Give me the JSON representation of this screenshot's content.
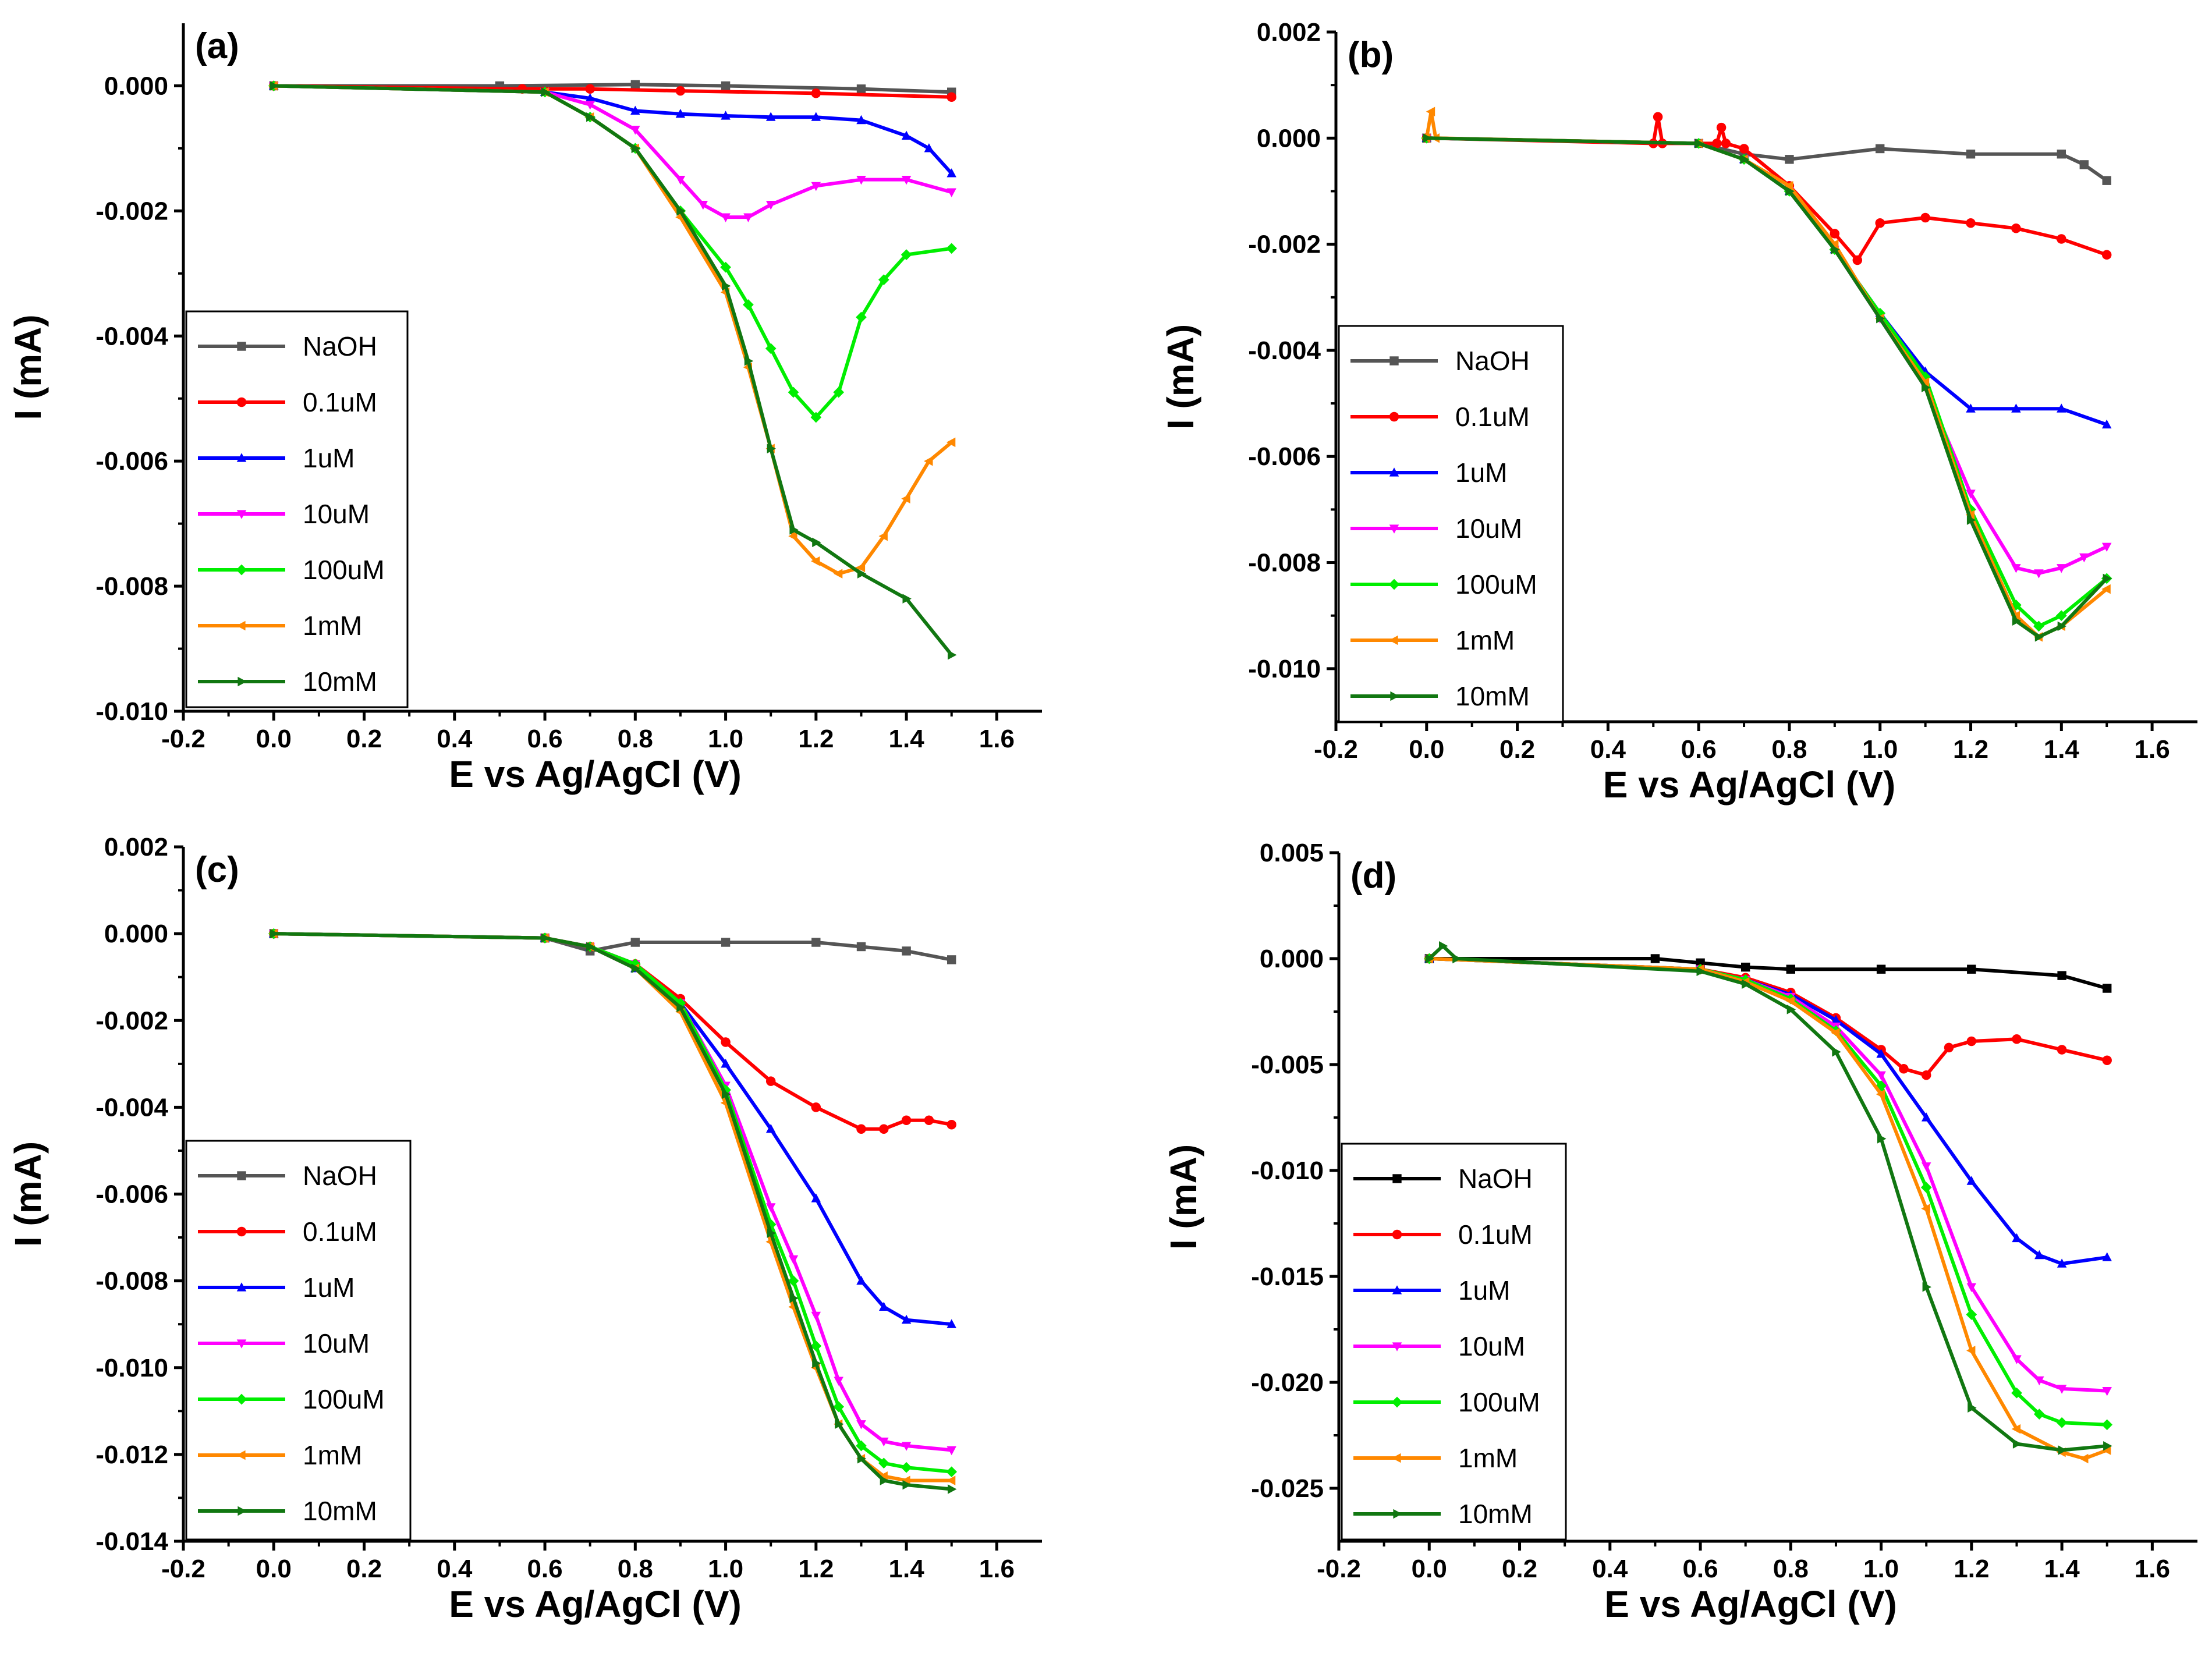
{
  "figure": {
    "legend_labels": [
      "NaOH",
      "0.1uM",
      "1uM",
      "10uM",
      "100uM",
      "1mM",
      "10mM"
    ],
    "series_colors": [
      "#555555",
      "#ff0000",
      "#0000ff",
      "#ff00ff",
      "#00ee00",
      "#ff8800",
      "#117711"
    ],
    "naoh_color_panel_d": "#000000"
  },
  "chart_data": [
    {
      "type": "line",
      "panel": "(a)",
      "xlabel": "E vs Ag/AgCl (V)",
      "ylabel": "I (mA)",
      "xlim": [
        -0.2,
        1.7
      ],
      "ylim": [
        -0.01,
        0.001
      ],
      "xticks": [
        -0.2,
        0.0,
        0.2,
        0.4,
        0.6,
        0.8,
        1.0,
        1.2,
        1.4,
        1.6
      ],
      "xtick_labels": [
        "-0.2",
        "0.0",
        "0.2",
        "0.4",
        "0.6",
        "0.8",
        "1.0",
        "1.2",
        "1.4",
        "1.6"
      ],
      "yticks": [
        0.0,
        -0.002,
        -0.004,
        -0.006,
        -0.008,
        -0.01
      ],
      "ytick_labels": [
        "0.000",
        "-0.002",
        "-0.004",
        "-0.006",
        "-0.008",
        "-0.010"
      ],
      "legend": "left",
      "series": [
        {
          "name": "NaOH",
          "x": [
            0.0,
            0.5,
            0.8,
            1.0,
            1.3,
            1.5
          ],
          "y": [
            0.0,
            0.0,
            2e-05,
            0.0,
            -5e-05,
            -0.0001
          ]
        },
        {
          "name": "0.1uM",
          "x": [
            0.0,
            0.55,
            0.7,
            0.9,
            1.2,
            1.5
          ],
          "y": [
            0.0,
            -5e-05,
            -5e-05,
            -8e-05,
            -0.00012,
            -0.00018
          ]
        },
        {
          "name": "1uM",
          "x": [
            0.0,
            0.6,
            0.7,
            0.8,
            0.9,
            1.0,
            1.1,
            1.2,
            1.3,
            1.4,
            1.45,
            1.5
          ],
          "y": [
            0.0,
            -0.0001,
            -0.0002,
            -0.0004,
            -0.00045,
            -0.00048,
            -0.0005,
            -0.0005,
            -0.00055,
            -0.0008,
            -0.001,
            -0.0014
          ]
        },
        {
          "name": "10uM",
          "x": [
            0.0,
            0.6,
            0.7,
            0.8,
            0.9,
            0.95,
            1.0,
            1.05,
            1.1,
            1.2,
            1.3,
            1.4,
            1.5
          ],
          "y": [
            0.0,
            -0.0001,
            -0.0003,
            -0.0007,
            -0.0015,
            -0.0019,
            -0.0021,
            -0.0021,
            -0.0019,
            -0.0016,
            -0.0015,
            -0.0015,
            -0.0017
          ]
        },
        {
          "name": "100uM",
          "x": [
            0.0,
            0.6,
            0.7,
            0.8,
            0.9,
            1.0,
            1.05,
            1.1,
            1.15,
            1.2,
            1.25,
            1.3,
            1.35,
            1.4,
            1.5
          ],
          "y": [
            0.0,
            -0.0001,
            -0.0005,
            -0.001,
            -0.002,
            -0.0029,
            -0.0035,
            -0.0042,
            -0.0049,
            -0.0053,
            -0.0049,
            -0.0037,
            -0.0031,
            -0.0027,
            -0.0026
          ]
        },
        {
          "name": "1mM",
          "x": [
            0.0,
            0.6,
            0.7,
            0.8,
            0.9,
            1.0,
            1.05,
            1.1,
            1.15,
            1.2,
            1.25,
            1.3,
            1.35,
            1.4,
            1.45,
            1.5
          ],
          "y": [
            0.0,
            -0.0001,
            -0.0005,
            -0.001,
            -0.0021,
            -0.0033,
            -0.0045,
            -0.0058,
            -0.0072,
            -0.0076,
            -0.0078,
            -0.0077,
            -0.0072,
            -0.0066,
            -0.006,
            -0.0057
          ]
        },
        {
          "name": "10mM",
          "x": [
            0.0,
            0.6,
            0.7,
            0.8,
            0.9,
            1.0,
            1.05,
            1.1,
            1.15,
            1.2,
            1.3,
            1.4,
            1.5
          ],
          "y": [
            0.0,
            -0.0001,
            -0.0005,
            -0.001,
            -0.002,
            -0.0032,
            -0.0044,
            -0.0058,
            -0.0071,
            -0.0073,
            -0.0078,
            -0.0082,
            -0.0091
          ]
        }
      ]
    },
    {
      "type": "line",
      "panel": "(b)",
      "xlabel": "E vs Ag/AgCl (V)",
      "ylabel": "I (mA)",
      "xlim": [
        -0.2,
        1.7
      ],
      "ylim": [
        -0.011,
        0.002
      ],
      "xticks": [
        -0.2,
        0.0,
        0.2,
        0.4,
        0.6,
        0.8,
        1.0,
        1.2,
        1.4,
        1.6
      ],
      "xtick_labels": [
        "-0.2",
        "0.0",
        "0.2",
        "0.4",
        "0.6",
        "0.8",
        "1.0",
        "1.2",
        "1.4",
        "1.6"
      ],
      "yticks": [
        0.002,
        0.0,
        -0.002,
        -0.004,
        -0.006,
        -0.008,
        -0.01
      ],
      "ytick_labels": [
        "0.002",
        "0.000",
        "-0.002",
        "-0.004",
        "-0.006",
        "-0.008",
        "-0.010"
      ],
      "legend": "left",
      "series": [
        {
          "name": "NaOH",
          "x": [
            0.0,
            0.6,
            0.7,
            0.8,
            1.0,
            1.2,
            1.4,
            1.45,
            1.5
          ],
          "y": [
            0.0,
            -0.0001,
            -0.0003,
            -0.0004,
            -0.0002,
            -0.0003,
            -0.0003,
            -0.0005,
            -0.0008
          ]
        },
        {
          "name": "0.1uM",
          "x": [
            0.0,
            0.5,
            0.51,
            0.52,
            0.64,
            0.65,
            0.66,
            0.7,
            0.8,
            0.9,
            0.95,
            1.0,
            1.1,
            1.2,
            1.3,
            1.4,
            1.5
          ],
          "y": [
            0.0,
            -0.0001,
            0.0004,
            -0.0001,
            -0.0001,
            0.0002,
            -0.0001,
            -0.0002,
            -0.0009,
            -0.0018,
            -0.0023,
            -0.0016,
            -0.0015,
            -0.0016,
            -0.0017,
            -0.0019,
            -0.0022
          ]
        },
        {
          "name": "1uM",
          "x": [
            0.0,
            0.6,
            0.7,
            0.8,
            0.9,
            1.0,
            1.1,
            1.2,
            1.3,
            1.4,
            1.5
          ],
          "y": [
            0.0,
            -0.0001,
            -0.0004,
            -0.001,
            -0.0021,
            -0.0033,
            -0.0044,
            -0.0051,
            -0.0051,
            -0.0051,
            -0.0054
          ]
        },
        {
          "name": "10uM",
          "x": [
            0.0,
            0.6,
            0.7,
            0.8,
            0.9,
            1.0,
            1.1,
            1.2,
            1.3,
            1.35,
            1.4,
            1.45,
            1.5
          ],
          "y": [
            0.0,
            -0.0001,
            -0.0004,
            -0.001,
            -0.0021,
            -0.0034,
            -0.0047,
            -0.0067,
            -0.0081,
            -0.0082,
            -0.0081,
            -0.0079,
            -0.0077
          ]
        },
        {
          "name": "100uM",
          "x": [
            0.0,
            0.6,
            0.7,
            0.8,
            0.9,
            1.0,
            1.1,
            1.2,
            1.3,
            1.35,
            1.4,
            1.5
          ],
          "y": [
            0.0,
            -0.0001,
            -0.0004,
            -0.001,
            -0.0021,
            -0.0033,
            -0.0045,
            -0.007,
            -0.0088,
            -0.0092,
            -0.009,
            -0.0083
          ]
        },
        {
          "name": "1mM",
          "x": [
            0.0,
            0.01,
            0.02,
            0.6,
            0.7,
            0.8,
            0.9,
            1.0,
            1.1,
            1.2,
            1.3,
            1.35,
            1.4,
            1.5
          ],
          "y": [
            0.0,
            0.0005,
            0.0,
            -0.0001,
            -0.0004,
            -0.0009,
            -0.002,
            -0.0034,
            -0.0046,
            -0.0071,
            -0.009,
            -0.0094,
            -0.0092,
            -0.0085
          ]
        },
        {
          "name": "10mM",
          "x": [
            0.0,
            0.6,
            0.7,
            0.8,
            0.9,
            1.0,
            1.1,
            1.2,
            1.3,
            1.35,
            1.4,
            1.5
          ],
          "y": [
            0.0,
            -0.0001,
            -0.0004,
            -0.001,
            -0.0021,
            -0.0034,
            -0.0047,
            -0.0072,
            -0.0091,
            -0.0094,
            -0.0092,
            -0.0083
          ]
        }
      ]
    },
    {
      "type": "line",
      "panel": "(c)",
      "xlabel": "E vs Ag/AgCl (V)",
      "ylabel": "I (mA)",
      "xlim": [
        -0.2,
        1.7
      ],
      "ylim": [
        -0.014,
        0.002
      ],
      "xticks": [
        -0.2,
        0.0,
        0.2,
        0.4,
        0.6,
        0.8,
        1.0,
        1.2,
        1.4,
        1.6
      ],
      "xtick_labels": [
        "-0.2",
        "0.0",
        "0.2",
        "0.4",
        "0.6",
        "0.8",
        "1.0",
        "1.2",
        "1.4",
        "1.6"
      ],
      "yticks": [
        0.002,
        0.0,
        -0.002,
        -0.004,
        -0.006,
        -0.008,
        -0.01,
        -0.012,
        -0.014
      ],
      "ytick_labels": [
        "0.002",
        "0.000",
        "-0.002",
        "-0.004",
        "-0.006",
        "-0.008",
        "-0.010",
        "-0.012",
        "-0.014"
      ],
      "legend": "left",
      "series": [
        {
          "name": "NaOH",
          "x": [
            0.0,
            0.6,
            0.7,
            0.8,
            1.0,
            1.2,
            1.3,
            1.4,
            1.5
          ],
          "y": [
            0.0,
            -0.0001,
            -0.0004,
            -0.0002,
            -0.0002,
            -0.0002,
            -0.0003,
            -0.0004,
            -0.0006
          ]
        },
        {
          "name": "0.1uM",
          "x": [
            0.0,
            0.6,
            0.7,
            0.8,
            0.9,
            1.0,
            1.1,
            1.2,
            1.3,
            1.35,
            1.4,
            1.45,
            1.5
          ],
          "y": [
            0.0,
            -0.0001,
            -0.0003,
            -0.0007,
            -0.0015,
            -0.0025,
            -0.0034,
            -0.004,
            -0.0045,
            -0.0045,
            -0.0043,
            -0.0043,
            -0.0044
          ]
        },
        {
          "name": "1uM",
          "x": [
            0.0,
            0.6,
            0.7,
            0.8,
            0.9,
            1.0,
            1.1,
            1.2,
            1.3,
            1.35,
            1.4,
            1.5
          ],
          "y": [
            0.0,
            -0.0001,
            -0.0003,
            -0.0008,
            -0.0016,
            -0.003,
            -0.0045,
            -0.0061,
            -0.008,
            -0.0086,
            -0.0089,
            -0.009
          ]
        },
        {
          "name": "10uM",
          "x": [
            0.0,
            0.6,
            0.7,
            0.8,
            0.9,
            1.0,
            1.1,
            1.15,
            1.2,
            1.25,
            1.3,
            1.35,
            1.4,
            1.5
          ],
          "y": [
            0.0,
            -0.0001,
            -0.0003,
            -0.0007,
            -0.0016,
            -0.0035,
            -0.0063,
            -0.0075,
            -0.0088,
            -0.0103,
            -0.0113,
            -0.0117,
            -0.0118,
            -0.0119
          ]
        },
        {
          "name": "100uM",
          "x": [
            0.0,
            0.6,
            0.7,
            0.8,
            0.9,
            1.0,
            1.1,
            1.15,
            1.2,
            1.25,
            1.3,
            1.35,
            1.4,
            1.5
          ],
          "y": [
            0.0,
            -0.0001,
            -0.0003,
            -0.0007,
            -0.0016,
            -0.0036,
            -0.0067,
            -0.008,
            -0.0095,
            -0.0109,
            -0.0118,
            -0.0122,
            -0.0123,
            -0.0124
          ]
        },
        {
          "name": "1mM",
          "x": [
            0.0,
            0.6,
            0.7,
            0.8,
            0.9,
            1.0,
            1.1,
            1.15,
            1.2,
            1.25,
            1.3,
            1.35,
            1.4,
            1.5
          ],
          "y": [
            0.0,
            -0.0001,
            -0.0003,
            -0.0008,
            -0.0018,
            -0.0039,
            -0.0071,
            -0.0086,
            -0.01,
            -0.0113,
            -0.0121,
            -0.0125,
            -0.0126,
            -0.0126
          ]
        },
        {
          "name": "10mM",
          "x": [
            0.0,
            0.6,
            0.7,
            0.8,
            0.9,
            1.0,
            1.1,
            1.15,
            1.2,
            1.25,
            1.3,
            1.35,
            1.4,
            1.5
          ],
          "y": [
            0.0,
            -0.0001,
            -0.0003,
            -0.0008,
            -0.0017,
            -0.0037,
            -0.0069,
            -0.0084,
            -0.0099,
            -0.0113,
            -0.0121,
            -0.0126,
            -0.0127,
            -0.0128
          ]
        }
      ]
    },
    {
      "type": "line",
      "panel": "(d)",
      "xlabel": "E vs Ag/AgCl (V)",
      "ylabel": "I (mA)",
      "xlim": [
        -0.2,
        1.7
      ],
      "ylim": [
        -0.0275,
        0.005
      ],
      "xticks": [
        -0.2,
        0.0,
        0.2,
        0.4,
        0.6,
        0.8,
        1.0,
        1.2,
        1.4,
        1.6
      ],
      "xtick_labels": [
        "-0.2",
        "0.0",
        "0.2",
        "0.4",
        "0.6",
        "0.8",
        "1.0",
        "1.2",
        "1.4",
        "1.6"
      ],
      "yticks": [
        0.005,
        0.0,
        -0.005,
        -0.01,
        -0.015,
        -0.02,
        -0.025
      ],
      "ytick_labels": [
        "0.005",
        "0.000",
        "-0.005",
        "-0.010",
        "-0.015",
        "-0.020",
        "-0.025"
      ],
      "legend": "left",
      "series": [
        {
          "name": "NaOH",
          "x": [
            0.0,
            0.5,
            0.6,
            0.7,
            0.8,
            1.0,
            1.2,
            1.4,
            1.5
          ],
          "y": [
            0.0,
            0.0,
            -0.0002,
            -0.0004,
            -0.0005,
            -0.0005,
            -0.0005,
            -0.0008,
            -0.0014
          ]
        },
        {
          "name": "0.1uM",
          "x": [
            0.0,
            0.6,
            0.7,
            0.8,
            0.9,
            1.0,
            1.05,
            1.1,
            1.15,
            1.2,
            1.3,
            1.4,
            1.5
          ],
          "y": [
            0.0,
            -0.0005,
            -0.0009,
            -0.0016,
            -0.0028,
            -0.0043,
            -0.0052,
            -0.0055,
            -0.0042,
            -0.0039,
            -0.0038,
            -0.0043,
            -0.0048
          ]
        },
        {
          "name": "1uM",
          "x": [
            0.0,
            0.6,
            0.7,
            0.8,
            0.9,
            1.0,
            1.1,
            1.2,
            1.3,
            1.35,
            1.4,
            1.5
          ],
          "y": [
            0.0,
            -0.0005,
            -0.001,
            -0.0017,
            -0.0029,
            -0.0045,
            -0.0075,
            -0.0105,
            -0.0132,
            -0.014,
            -0.0144,
            -0.0141
          ]
        },
        {
          "name": "10uM",
          "x": [
            0.0,
            0.6,
            0.7,
            0.8,
            0.9,
            1.0,
            1.1,
            1.2,
            1.3,
            1.35,
            1.4,
            1.5
          ],
          "y": [
            0.0,
            -0.0005,
            -0.001,
            -0.0018,
            -0.0032,
            -0.0055,
            -0.0098,
            -0.0155,
            -0.0189,
            -0.0199,
            -0.0203,
            -0.0204
          ]
        },
        {
          "name": "100uM",
          "x": [
            0.0,
            0.6,
            0.7,
            0.8,
            0.9,
            1.0,
            1.1,
            1.2,
            1.3,
            1.35,
            1.4,
            1.5
          ],
          "y": [
            0.0,
            -0.0005,
            -0.001,
            -0.0019,
            -0.0034,
            -0.006,
            -0.0108,
            -0.0168,
            -0.0205,
            -0.0215,
            -0.0219,
            -0.022
          ]
        },
        {
          "name": "1mM",
          "x": [
            0.0,
            0.6,
            0.7,
            0.8,
            0.9,
            1.0,
            1.1,
            1.2,
            1.3,
            1.4,
            1.45,
            1.5
          ],
          "y": [
            0.0,
            -0.0005,
            -0.0011,
            -0.002,
            -0.0035,
            -0.0064,
            -0.0118,
            -0.0185,
            -0.0222,
            -0.0233,
            -0.0236,
            -0.0232
          ]
        },
        {
          "name": "10mM",
          "x": [
            0.0,
            0.03,
            0.06,
            0.6,
            0.7,
            0.8,
            0.9,
            1.0,
            1.1,
            1.2,
            1.3,
            1.4,
            1.5
          ],
          "y": [
            0.0,
            0.0006,
            0.0,
            -0.0006,
            -0.0012,
            -0.0024,
            -0.0044,
            -0.0085,
            -0.0155,
            -0.0212,
            -0.0229,
            -0.0232,
            -0.023
          ]
        }
      ]
    }
  ]
}
